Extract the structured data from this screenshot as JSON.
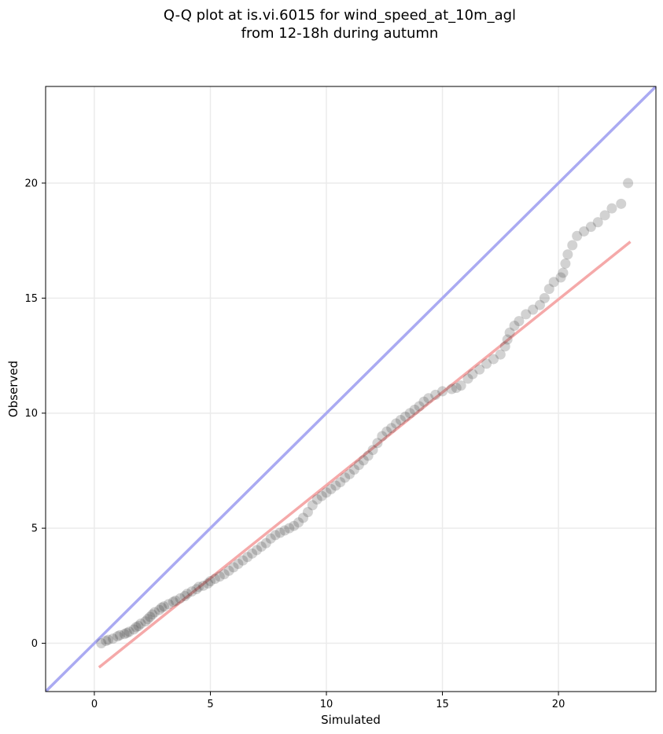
{
  "chart_data": {
    "type": "scatter",
    "title": [
      "Q-Q plot at is.vi.6015 for wind_speed_at_10m_agl",
      "from 12-18h during autumn"
    ],
    "xlabel": "Simulated",
    "ylabel": "Observed",
    "xlim": [
      -2.1,
      24.2
    ],
    "ylim": [
      -2.1,
      24.2
    ],
    "xticks": [
      0,
      5,
      10,
      15,
      20
    ],
    "yticks": [
      0,
      5,
      10,
      15,
      20
    ],
    "grid": true,
    "colors": {
      "points": "#333333",
      "identity_line": "#aaaaf2",
      "fit_line": "#f5a9a9",
      "grid": "#ebebeb"
    },
    "identity_line": {
      "x": [
        -2.1,
        24.2
      ],
      "y": [
        -2.1,
        24.2
      ]
    },
    "fit_line": {
      "x": [
        0.2,
        23.1
      ],
      "y": [
        -1.05,
        17.45
      ]
    },
    "series": [
      {
        "quantiles_simulated_observed": [
          [
            0.3,
            0.0
          ],
          [
            0.5,
            0.1
          ],
          [
            0.6,
            0.15
          ],
          [
            0.8,
            0.2
          ],
          [
            1.0,
            0.3
          ],
          [
            1.1,
            0.35
          ],
          [
            1.3,
            0.4
          ],
          [
            1.4,
            0.45
          ],
          [
            1.5,
            0.5
          ],
          [
            1.7,
            0.6
          ],
          [
            1.8,
            0.7
          ],
          [
            1.9,
            0.75
          ],
          [
            2.0,
            0.85
          ],
          [
            2.2,
            0.95
          ],
          [
            2.3,
            1.05
          ],
          [
            2.4,
            1.15
          ],
          [
            2.5,
            1.25
          ],
          [
            2.6,
            1.35
          ],
          [
            2.8,
            1.45
          ],
          [
            2.9,
            1.55
          ],
          [
            3.0,
            1.6
          ],
          [
            3.2,
            1.7
          ],
          [
            3.4,
            1.8
          ],
          [
            3.5,
            1.85
          ],
          [
            3.7,
            1.95
          ],
          [
            3.9,
            2.05
          ],
          [
            4.0,
            2.15
          ],
          [
            4.2,
            2.25
          ],
          [
            4.4,
            2.35
          ],
          [
            4.5,
            2.45
          ],
          [
            4.7,
            2.5
          ],
          [
            4.9,
            2.6
          ],
          [
            5.0,
            2.7
          ],
          [
            5.2,
            2.8
          ],
          [
            5.4,
            2.9
          ],
          [
            5.6,
            3.0
          ],
          [
            5.8,
            3.15
          ],
          [
            6.0,
            3.3
          ],
          [
            6.2,
            3.45
          ],
          [
            6.4,
            3.6
          ],
          [
            6.6,
            3.75
          ],
          [
            6.8,
            3.9
          ],
          [
            7.0,
            4.05
          ],
          [
            7.2,
            4.2
          ],
          [
            7.4,
            4.35
          ],
          [
            7.6,
            4.55
          ],
          [
            7.8,
            4.7
          ],
          [
            8.0,
            4.8
          ],
          [
            8.2,
            4.9
          ],
          [
            8.4,
            5.0
          ],
          [
            8.6,
            5.1
          ],
          [
            8.8,
            5.25
          ],
          [
            9.0,
            5.45
          ],
          [
            9.2,
            5.7
          ],
          [
            9.4,
            6.0
          ],
          [
            9.6,
            6.25
          ],
          [
            9.8,
            6.4
          ],
          [
            10.0,
            6.55
          ],
          [
            10.2,
            6.7
          ],
          [
            10.4,
            6.85
          ],
          [
            10.6,
            7.0
          ],
          [
            10.8,
            7.2
          ],
          [
            11.0,
            7.35
          ],
          [
            11.2,
            7.55
          ],
          [
            11.4,
            7.75
          ],
          [
            11.6,
            7.95
          ],
          [
            11.8,
            8.15
          ],
          [
            12.0,
            8.4
          ],
          [
            12.2,
            8.7
          ],
          [
            12.4,
            9.0
          ],
          [
            12.6,
            9.2
          ],
          [
            12.8,
            9.35
          ],
          [
            13.0,
            9.55
          ],
          [
            13.2,
            9.7
          ],
          [
            13.4,
            9.85
          ],
          [
            13.6,
            10.0
          ],
          [
            13.8,
            10.15
          ],
          [
            14.0,
            10.3
          ],
          [
            14.2,
            10.5
          ],
          [
            14.4,
            10.65
          ],
          [
            14.7,
            10.8
          ],
          [
            15.0,
            10.95
          ],
          [
            15.4,
            11.05
          ],
          [
            15.6,
            11.1
          ],
          [
            15.8,
            11.2
          ],
          [
            16.1,
            11.5
          ],
          [
            16.3,
            11.7
          ],
          [
            16.6,
            11.9
          ],
          [
            16.9,
            12.15
          ],
          [
            17.2,
            12.35
          ],
          [
            17.5,
            12.55
          ],
          [
            17.7,
            12.9
          ],
          [
            17.8,
            13.2
          ],
          [
            17.9,
            13.5
          ],
          [
            18.1,
            13.8
          ],
          [
            18.3,
            14.0
          ],
          [
            18.6,
            14.3
          ],
          [
            18.9,
            14.5
          ],
          [
            19.2,
            14.7
          ],
          [
            19.4,
            15.0
          ],
          [
            19.6,
            15.4
          ],
          [
            19.8,
            15.7
          ],
          [
            20.1,
            15.9
          ],
          [
            20.2,
            16.1
          ],
          [
            20.3,
            16.5
          ],
          [
            20.4,
            16.9
          ],
          [
            20.6,
            17.3
          ],
          [
            20.8,
            17.7
          ],
          [
            21.1,
            17.9
          ],
          [
            21.4,
            18.1
          ],
          [
            21.7,
            18.3
          ],
          [
            22.0,
            18.6
          ],
          [
            22.3,
            18.9
          ],
          [
            22.7,
            19.1
          ],
          [
            23.0,
            20.0
          ]
        ]
      }
    ]
  }
}
